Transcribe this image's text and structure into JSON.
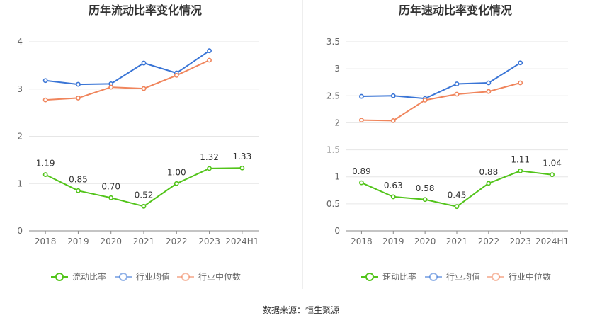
{
  "chart_data": [
    {
      "type": "line",
      "title": "历年流动比率变化情况",
      "categories": [
        "2018",
        "2019",
        "2020",
        "2021",
        "2022",
        "2023",
        "2024H1"
      ],
      "ylim": [
        0,
        4
      ],
      "yticks": [
        "0",
        "1",
        "2",
        "3",
        "4"
      ],
      "grid": true,
      "legend_position": "bottom",
      "series": [
        {
          "name": "流动比率",
          "color": "#52c41a",
          "values": [
            1.19,
            0.85,
            0.7,
            0.52,
            1.0,
            1.32,
            1.33
          ],
          "labels": [
            "1.19",
            "0.85",
            "0.70",
            "0.52",
            "1.00",
            "1.32",
            "1.33"
          ]
        },
        {
          "name": "行业均值",
          "color": "#3a75d6",
          "values": [
            3.18,
            3.1,
            3.11,
            3.55,
            3.34,
            3.81,
            null
          ]
        },
        {
          "name": "行业中位数",
          "color": "#f0855c",
          "values": [
            2.77,
            2.81,
            3.04,
            3.01,
            3.29,
            3.61,
            null
          ]
        }
      ]
    },
    {
      "type": "line",
      "title": "历年速动比率变化情况",
      "categories": [
        "2018",
        "2019",
        "2020",
        "2021",
        "2022",
        "2023",
        "2024H1"
      ],
      "ylim": [
        0,
        3.5
      ],
      "yticks": [
        "0",
        "0.5",
        "1",
        "1.5",
        "2",
        "2.5",
        "3",
        "3.5"
      ],
      "grid": true,
      "legend_position": "bottom",
      "series": [
        {
          "name": "速动比率",
          "color": "#52c41a",
          "values": [
            0.89,
            0.63,
            0.58,
            0.45,
            0.88,
            1.11,
            1.04
          ],
          "labels": [
            "0.89",
            "0.63",
            "0.58",
            "0.45",
            "0.88",
            "1.11",
            "1.04"
          ]
        },
        {
          "name": "行业均值",
          "color": "#3a75d6",
          "values": [
            2.49,
            2.5,
            2.45,
            2.72,
            2.74,
            3.11,
            null
          ]
        },
        {
          "name": "行业中位数",
          "color": "#f0855c",
          "values": [
            2.05,
            2.04,
            2.42,
            2.53,
            2.58,
            2.74,
            null
          ]
        }
      ]
    }
  ],
  "source": "数据来源：恒生聚源"
}
